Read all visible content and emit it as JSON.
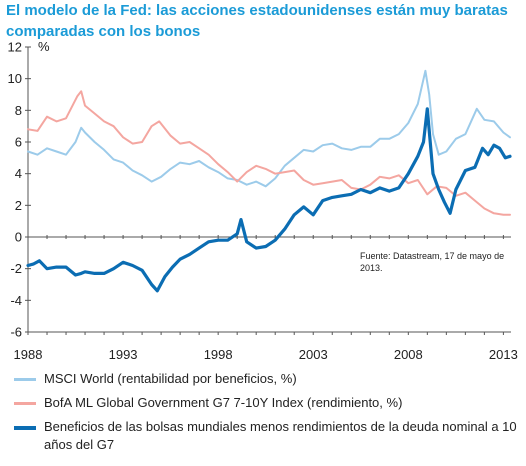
{
  "title": "El modelo de la Fed: las acciones estadounidenses están muy baratas comparadas con los bonos",
  "source_note": "Fuente: Datastream, 17 de mayo de 2013.",
  "colors": {
    "msci": "#9ccbea",
    "bofa": "#f4a6a0",
    "spread": "#0b6db3",
    "title": "#1b9bd7"
  },
  "chart_data": {
    "type": "line",
    "ylabel": "%",
    "xlabel": "",
    "xlim": [
      1988,
      2013.4
    ],
    "ylim": [
      -6,
      12
    ],
    "x_ticks": [
      "1988",
      "1993",
      "1998",
      "2003",
      "2008",
      "2013"
    ],
    "y_ticks": [
      "-6",
      "-4",
      "-2",
      "0",
      "2",
      "4",
      "6",
      "8",
      "10",
      "12"
    ],
    "grid": false,
    "legend_position": "bottom",
    "series": [
      {
        "name": "MSCI World (rentabilidad por beneficios, %)",
        "color": "#9ccbea",
        "points": [
          [
            1988,
            5.4
          ],
          [
            1988.5,
            5.2
          ],
          [
            1989,
            5.6
          ],
          [
            1989.5,
            5.4
          ],
          [
            1990,
            5.2
          ],
          [
            1990.5,
            6.0
          ],
          [
            1990.8,
            6.9
          ],
          [
            1991,
            6.6
          ],
          [
            1991.5,
            6.0
          ],
          [
            1992,
            5.5
          ],
          [
            1992.5,
            4.9
          ],
          [
            1993,
            4.7
          ],
          [
            1993.5,
            4.2
          ],
          [
            1994,
            3.9
          ],
          [
            1994.5,
            3.5
          ],
          [
            1995,
            3.8
          ],
          [
            1995.5,
            4.3
          ],
          [
            1996,
            4.7
          ],
          [
            1996.5,
            4.6
          ],
          [
            1997,
            4.8
          ],
          [
            1997.5,
            4.4
          ],
          [
            1998,
            4.1
          ],
          [
            1998.5,
            3.7
          ],
          [
            1999,
            3.6
          ],
          [
            1999.5,
            3.3
          ],
          [
            2000,
            3.5
          ],
          [
            2000.5,
            3.2
          ],
          [
            2001,
            3.7
          ],
          [
            2001.5,
            4.5
          ],
          [
            2002,
            5.0
          ],
          [
            2002.5,
            5.5
          ],
          [
            2003,
            5.4
          ],
          [
            2003.5,
            5.8
          ],
          [
            2004,
            5.9
          ],
          [
            2004.5,
            5.6
          ],
          [
            2005,
            5.5
          ],
          [
            2005.5,
            5.7
          ],
          [
            2006,
            5.7
          ],
          [
            2006.5,
            6.2
          ],
          [
            2007,
            6.2
          ],
          [
            2007.5,
            6.5
          ],
          [
            2008,
            7.2
          ],
          [
            2008.5,
            8.4
          ],
          [
            2008.9,
            10.5
          ],
          [
            2009.1,
            9.0
          ],
          [
            2009.3,
            6.5
          ],
          [
            2009.6,
            5.2
          ],
          [
            2010,
            5.4
          ],
          [
            2010.5,
            6.2
          ],
          [
            2011,
            6.5
          ],
          [
            2011.6,
            8.1
          ],
          [
            2012,
            7.4
          ],
          [
            2012.5,
            7.3
          ],
          [
            2013,
            6.6
          ],
          [
            2013.35,
            6.3
          ]
        ]
      },
      {
        "name": "BofA ML Global Government G7 7-10Y Index (rendimiento, %)",
        "color": "#f4a6a0",
        "points": [
          [
            1988,
            6.8
          ],
          [
            1988.5,
            6.7
          ],
          [
            1989,
            7.6
          ],
          [
            1989.5,
            7.3
          ],
          [
            1990,
            7.5
          ],
          [
            1990.6,
            8.9
          ],
          [
            1990.8,
            9.2
          ],
          [
            1991,
            8.3
          ],
          [
            1991.5,
            7.8
          ],
          [
            1992,
            7.3
          ],
          [
            1992.5,
            7.0
          ],
          [
            1993,
            6.3
          ],
          [
            1993.5,
            5.9
          ],
          [
            1994,
            6.0
          ],
          [
            1994.5,
            7.0
          ],
          [
            1994.9,
            7.3
          ],
          [
            1995.5,
            6.4
          ],
          [
            1996,
            5.9
          ],
          [
            1996.5,
            6.0
          ],
          [
            1997,
            5.6
          ],
          [
            1997.5,
            5.2
          ],
          [
            1998,
            4.6
          ],
          [
            1998.5,
            4.1
          ],
          [
            1999,
            3.5
          ],
          [
            1999.5,
            4.1
          ],
          [
            2000,
            4.5
          ],
          [
            2000.5,
            4.3
          ],
          [
            2001,
            4.0
          ],
          [
            2001.5,
            4.1
          ],
          [
            2002,
            4.2
          ],
          [
            2002.5,
            3.6
          ],
          [
            2003,
            3.3
          ],
          [
            2003.5,
            3.4
          ],
          [
            2004,
            3.5
          ],
          [
            2004.5,
            3.6
          ],
          [
            2005,
            3.1
          ],
          [
            2005.5,
            3.0
          ],
          [
            2006,
            3.3
          ],
          [
            2006.5,
            3.8
          ],
          [
            2007,
            3.7
          ],
          [
            2007.5,
            3.9
          ],
          [
            2008,
            3.4
          ],
          [
            2008.5,
            3.6
          ],
          [
            2009,
            2.7
          ],
          [
            2009.5,
            3.2
          ],
          [
            2010,
            3.1
          ],
          [
            2010.5,
            2.6
          ],
          [
            2011,
            2.8
          ],
          [
            2011.5,
            2.3
          ],
          [
            2012,
            1.8
          ],
          [
            2012.5,
            1.5
          ],
          [
            2013,
            1.4
          ],
          [
            2013.35,
            1.4
          ]
        ]
      },
      {
        "name": "Beneficios de las bolsas mundiales menos rendimientos de la deuda nominal a 10 años del G7",
        "color": "#0b6db3",
        "points": [
          [
            1988,
            -1.8
          ],
          [
            1988.3,
            -1.7
          ],
          [
            1988.6,
            -1.5
          ],
          [
            1989,
            -2.0
          ],
          [
            1989.5,
            -1.9
          ],
          [
            1990,
            -1.9
          ],
          [
            1990.5,
            -2.4
          ],
          [
            1990.8,
            -2.3
          ],
          [
            1991,
            -2.2
          ],
          [
            1991.5,
            -2.3
          ],
          [
            1992,
            -2.3
          ],
          [
            1992.5,
            -2.0
          ],
          [
            1993,
            -1.6
          ],
          [
            1993.5,
            -1.8
          ],
          [
            1994,
            -2.1
          ],
          [
            1994.5,
            -3.0
          ],
          [
            1994.8,
            -3.4
          ],
          [
            1995.2,
            -2.5
          ],
          [
            1995.6,
            -1.9
          ],
          [
            1996,
            -1.4
          ],
          [
            1996.5,
            -1.1
          ],
          [
            1997,
            -0.7
          ],
          [
            1997.5,
            -0.3
          ],
          [
            1998,
            -0.2
          ],
          [
            1998.5,
            -0.2
          ],
          [
            1999,
            0.2
          ],
          [
            1999.2,
            1.1
          ],
          [
            1999.5,
            -0.3
          ],
          [
            2000,
            -0.7
          ],
          [
            2000.5,
            -0.6
          ],
          [
            2001,
            -0.2
          ],
          [
            2001.5,
            0.5
          ],
          [
            2002,
            1.4
          ],
          [
            2002.5,
            1.9
          ],
          [
            2003,
            1.4
          ],
          [
            2003.5,
            2.3
          ],
          [
            2004,
            2.5
          ],
          [
            2004.5,
            2.6
          ],
          [
            2005,
            2.7
          ],
          [
            2005.5,
            3.0
          ],
          [
            2006,
            2.8
          ],
          [
            2006.5,
            3.1
          ],
          [
            2007,
            2.9
          ],
          [
            2007.5,
            3.1
          ],
          [
            2008,
            4.0
          ],
          [
            2008.5,
            5.1
          ],
          [
            2008.8,
            6.0
          ],
          [
            2009.0,
            8.1
          ],
          [
            2009.3,
            4.0
          ],
          [
            2009.6,
            3.0
          ],
          [
            2009.9,
            2.2
          ],
          [
            2010.2,
            1.5
          ],
          [
            2010.5,
            3.0
          ],
          [
            2011,
            4.2
          ],
          [
            2011.5,
            4.4
          ],
          [
            2011.9,
            5.6
          ],
          [
            2012.2,
            5.2
          ],
          [
            2012.5,
            5.8
          ],
          [
            2012.8,
            5.6
          ],
          [
            2013.1,
            5.0
          ],
          [
            2013.35,
            5.1
          ]
        ]
      }
    ]
  }
}
